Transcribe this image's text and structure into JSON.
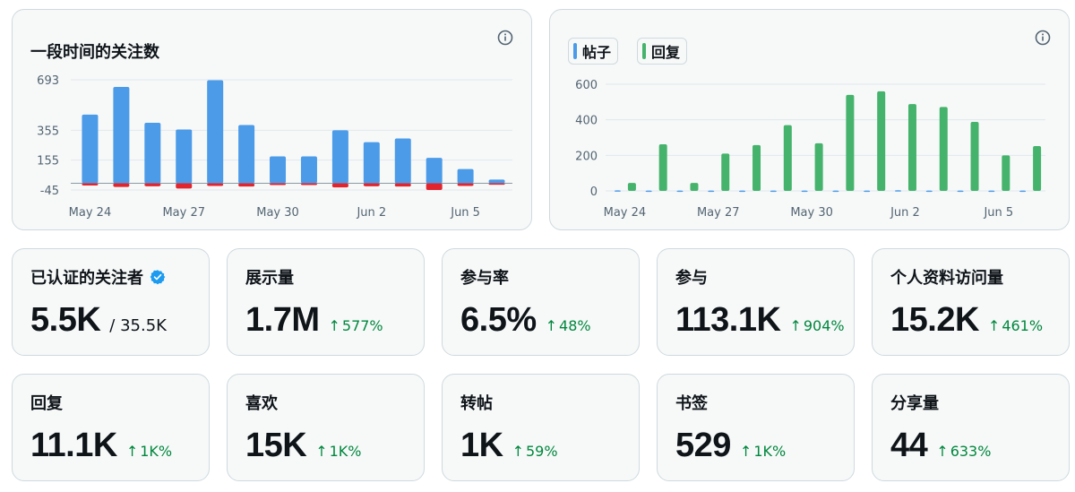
{
  "followers_chart": {
    "title": "一段时间的关注数",
    "chart_data": {
      "type": "bar",
      "categories": [
        "May 24",
        "May 25",
        "May 26",
        "May 27",
        "May 28",
        "May 29",
        "May 30",
        "May 31",
        "Jun 1",
        "Jun 2",
        "Jun 3",
        "Jun 4",
        "Jun 5",
        "Jun 6"
      ],
      "x_tick_labels": [
        "May 24",
        "May 27",
        "May 30",
        "Jun 2",
        "Jun 5"
      ],
      "y_ticks": [
        693,
        355,
        155,
        -45
      ],
      "ylim": [
        -45,
        693
      ],
      "series": [
        {
          "values": [
            460,
            645,
            405,
            360,
            690,
            390,
            180,
            180,
            355,
            275,
            300,
            170,
            95,
            25
          ],
          "color": "#4c9be8"
        },
        {
          "values": [
            -15,
            -25,
            -20,
            -35,
            -18,
            -22,
            -12,
            -12,
            -28,
            -20,
            -22,
            -45,
            -18,
            -10
          ],
          "color": "#e0252f"
        }
      ],
      "grid": true
    }
  },
  "posts_chart": {
    "legend": [
      {
        "label": "帖子",
        "color": "#4c9be8"
      },
      {
        "label": "回复",
        "color": "#45b36b"
      }
    ],
    "chart_data": {
      "type": "bar",
      "categories": [
        "May 24",
        "May 25",
        "May 26",
        "May 27",
        "May 28",
        "May 29",
        "May 30",
        "May 31",
        "Jun 1",
        "Jun 2",
        "Jun 3",
        "Jun 4",
        "Jun 5",
        "Jun 6"
      ],
      "x_tick_labels": [
        "May 24",
        "May 27",
        "May 30",
        "Jun 2",
        "Jun 5"
      ],
      "y_ticks": [
        600,
        400,
        200,
        0
      ],
      "ylim": [
        0,
        620
      ],
      "series": [
        {
          "name": "帖子",
          "values": [
            3,
            2,
            2,
            2,
            2,
            2,
            2,
            2,
            2,
            4,
            2,
            2,
            2,
            2
          ],
          "color": "#4c9be8"
        },
        {
          "name": "回复",
          "values": [
            45,
            262,
            45,
            210,
            258,
            370,
            268,
            540,
            560,
            488,
            472,
            388,
            200,
            252
          ],
          "color": "#45b36b"
        }
      ],
      "grid": true
    }
  },
  "stats": [
    {
      "label": "已认证的关注者",
      "value": "5.5K",
      "total": "/ 35.5K",
      "verified": true
    },
    {
      "label": "展示量",
      "value": "1.7M",
      "delta": "577%"
    },
    {
      "label": "参与率",
      "value": "6.5%",
      "delta": "48%"
    },
    {
      "label": "参与",
      "value": "113.1K",
      "delta": "904%"
    },
    {
      "label": "个人资料访问量",
      "value": "15.2K",
      "delta": "461%"
    },
    {
      "label": "回复",
      "value": "11.1K",
      "delta": "1K%"
    },
    {
      "label": "喜欢",
      "value": "15K",
      "delta": "1K%"
    },
    {
      "label": "转帖",
      "value": "1K",
      "delta": "59%"
    },
    {
      "label": "书签",
      "value": "529",
      "delta": "1K%"
    },
    {
      "label": "分享量",
      "value": "44",
      "delta": "633%"
    }
  ],
  "arrow_glyph": "↑"
}
